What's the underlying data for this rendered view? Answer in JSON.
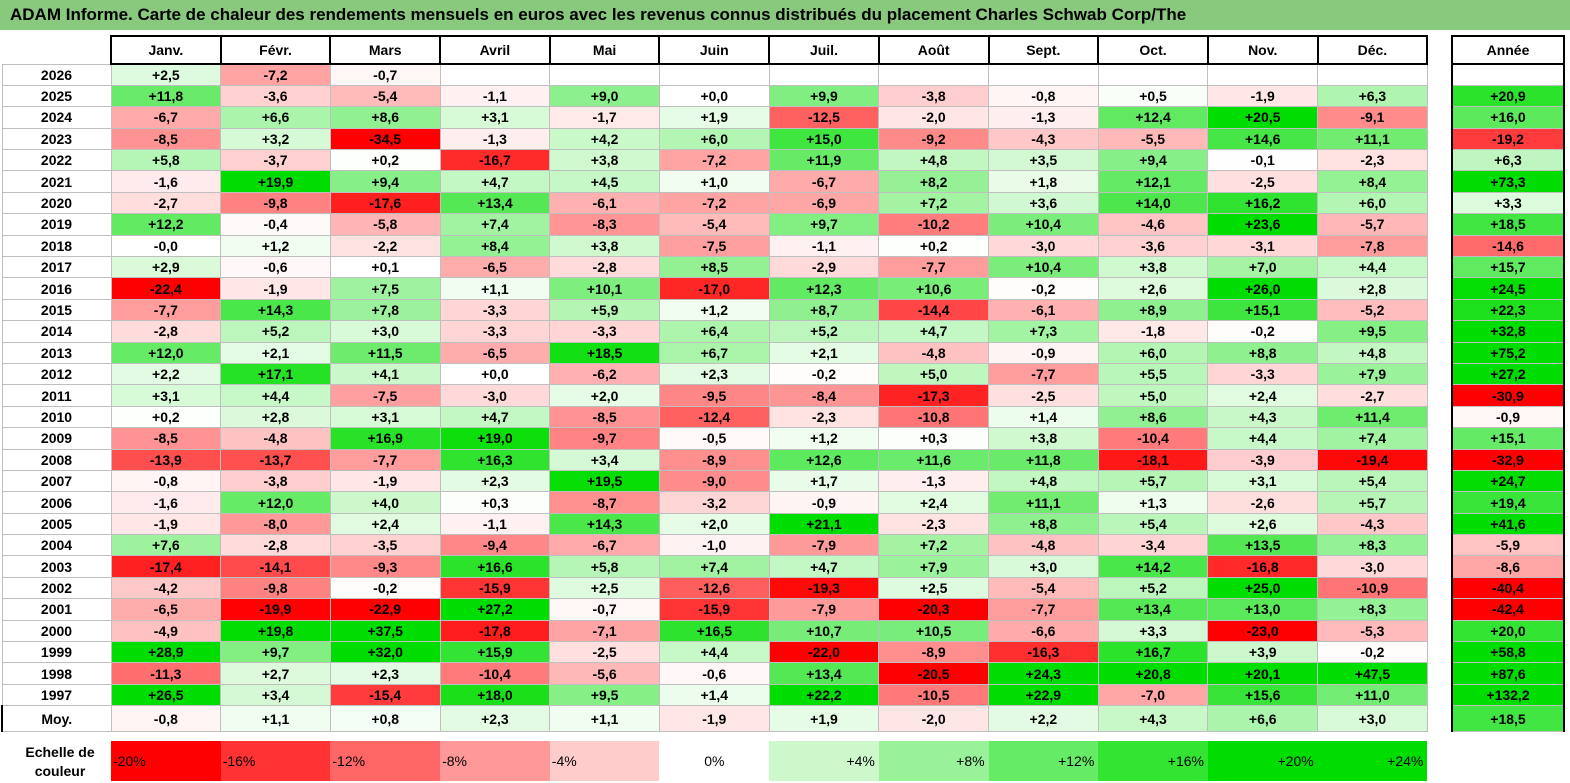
{
  "title": "ADAM Informe. Carte de chaleur des rendements mensuels en euros avec les revenus connus distribués du placement Charles Schwab Corp/The",
  "colors": {
    "title_bg": "#89c97d",
    "neg_max": "#ff0000",
    "pos_max": "#00dd00",
    "zero": "#ffffff"
  },
  "chart_data": {
    "type": "heatmap",
    "title": "ADAM Informe. Carte de chaleur des rendements mensuels en euros avec les revenus connus distribués du placement Charles Schwab Corp/The",
    "months": [
      "Janv.",
      "Févr.",
      "Mars",
      "Avril",
      "Mai",
      "Juin",
      "Juil.",
      "Août",
      "Sept.",
      "Oct.",
      "Nov.",
      "Déc."
    ],
    "year_header": "Année",
    "rows": [
      {
        "year": "2026",
        "values": [
          "+2,5",
          "-7,2",
          "-0,7",
          "",
          "",
          "",
          "",
          "",
          "",
          "",
          "",
          ""
        ],
        "annual": ""
      },
      {
        "year": "2025",
        "values": [
          "+11,8",
          "-3,6",
          "-5,4",
          "-1,1",
          "+9,0",
          "+0,0",
          "+9,9",
          "-3,8",
          "-0,8",
          "+0,5",
          "-1,9",
          "+6,3"
        ],
        "annual": "+20,9"
      },
      {
        "year": "2024",
        "values": [
          "-6,7",
          "+6,6",
          "+8,6",
          "+3,1",
          "-1,7",
          "+1,9",
          "-12,5",
          "-2,0",
          "-1,3",
          "+12,4",
          "+20,5",
          "-9,1"
        ],
        "annual": "+16,0"
      },
      {
        "year": "2023",
        "values": [
          "-8,5",
          "+3,2",
          "-34,5",
          "-1,3",
          "+4,2",
          "+6,0",
          "+15,0",
          "-9,2",
          "-4,3",
          "-5,5",
          "+14,6",
          "+11,1"
        ],
        "annual": "-19,2"
      },
      {
        "year": "2022",
        "values": [
          "+5,8",
          "-3,7",
          "+0,2",
          "-16,7",
          "+3,8",
          "-7,2",
          "+11,9",
          "+4,8",
          "+3,5",
          "+9,4",
          "-0,1",
          "-2,3"
        ],
        "annual": "+6,3"
      },
      {
        "year": "2021",
        "values": [
          "-1,6",
          "+19,9",
          "+9,4",
          "+4,7",
          "+4,5",
          "+1,0",
          "-6,7",
          "+8,2",
          "+1,8",
          "+12,1",
          "-2,5",
          "+8,4"
        ],
        "annual": "+73,3"
      },
      {
        "year": "2020",
        "values": [
          "-2,7",
          "-9,8",
          "-17,6",
          "+13,4",
          "-6,1",
          "-7,2",
          "-6,9",
          "+7,2",
          "+3,6",
          "+14,0",
          "+16,2",
          "+6,0"
        ],
        "annual": "+3,3"
      },
      {
        "year": "2019",
        "values": [
          "+12,2",
          "-0,4",
          "-5,8",
          "+7,4",
          "-8,3",
          "-5,4",
          "+9,7",
          "-10,2",
          "+10,4",
          "-4,6",
          "+23,6",
          "-5,7"
        ],
        "annual": "+18,5"
      },
      {
        "year": "2018",
        "values": [
          "-0,0",
          "+1,2",
          "-2,2",
          "+8,4",
          "+3,8",
          "-7,5",
          "-1,1",
          "+0,2",
          "-3,0",
          "-3,6",
          "-3,1",
          "-7,8"
        ],
        "annual": "-14,6"
      },
      {
        "year": "2017",
        "values": [
          "+2,9",
          "-0,6",
          "+0,1",
          "-6,5",
          "-2,8",
          "+8,5",
          "-2,9",
          "-7,7",
          "+10,4",
          "+3,8",
          "+7,0",
          "+4,4"
        ],
        "annual": "+15,7"
      },
      {
        "year": "2016",
        "values": [
          "-22,4",
          "-1,9",
          "+7,5",
          "+1,1",
          "+10,1",
          "-17,0",
          "+12,3",
          "+10,6",
          "-0,2",
          "+2,6",
          "+26,0",
          "+2,8"
        ],
        "annual": "+24,5"
      },
      {
        "year": "2015",
        "values": [
          "-7,7",
          "+14,3",
          "+7,8",
          "-3,3",
          "+5,9",
          "+1,2",
          "+8,7",
          "-14,4",
          "-6,1",
          "+8,9",
          "+15,1",
          "-5,2"
        ],
        "annual": "+22,3"
      },
      {
        "year": "2014",
        "values": [
          "-2,8",
          "+5,2",
          "+3,0",
          "-3,3",
          "-3,3",
          "+6,4",
          "+5,2",
          "+4,7",
          "+7,3",
          "-1,8",
          "-0,2",
          "+9,5"
        ],
        "annual": "+32,8"
      },
      {
        "year": "2013",
        "values": [
          "+12,0",
          "+2,1",
          "+11,5",
          "-6,5",
          "+18,5",
          "+6,7",
          "+2,1",
          "-4,8",
          "-0,9",
          "+6,0",
          "+8,8",
          "+4,8"
        ],
        "annual": "+75,2"
      },
      {
        "year": "2012",
        "values": [
          "+2,2",
          "+17,1",
          "+4,1",
          "+0,0",
          "-6,2",
          "+2,3",
          "-0,2",
          "+5,0",
          "-7,7",
          "+5,5",
          "-3,3",
          "+7,9"
        ],
        "annual": "+27,2"
      },
      {
        "year": "2011",
        "values": [
          "+3,1",
          "+4,4",
          "-7,5",
          "-3,0",
          "+2,0",
          "-9,5",
          "-8,4",
          "-17,3",
          "-2,5",
          "+5,0",
          "+2,4",
          "-2,7"
        ],
        "annual": "-30,9"
      },
      {
        "year": "2010",
        "values": [
          "+0,2",
          "+2,8",
          "+3,1",
          "+4,7",
          "-8,5",
          "-12,4",
          "-2,3",
          "-10,8",
          "+1,4",
          "+8,6",
          "+4,3",
          "+11,4"
        ],
        "annual": "-0,9"
      },
      {
        "year": "2009",
        "values": [
          "-8,5",
          "-4,8",
          "+16,9",
          "+19,0",
          "-9,7",
          "-0,5",
          "+1,2",
          "+0,3",
          "+3,8",
          "-10,4",
          "+4,4",
          "+7,4"
        ],
        "annual": "+15,1"
      },
      {
        "year": "2008",
        "values": [
          "-13,9",
          "-13,7",
          "-7,7",
          "+16,3",
          "+3,4",
          "-8,9",
          "+12,6",
          "+11,6",
          "+11,8",
          "-18,1",
          "-3,9",
          "-19,4"
        ],
        "annual": "-32,9"
      },
      {
        "year": "2007",
        "values": [
          "-0,8",
          "-3,8",
          "-1,9",
          "+2,3",
          "+19,5",
          "-9,0",
          "+1,7",
          "-1,3",
          "+4,8",
          "+5,7",
          "+3,1",
          "+5,4"
        ],
        "annual": "+24,7"
      },
      {
        "year": "2006",
        "values": [
          "-1,6",
          "+12,0",
          "+4,0",
          "+0,3",
          "-8,7",
          "-3,2",
          "-0,9",
          "+2,4",
          "+11,1",
          "+1,3",
          "-2,6",
          "+5,7"
        ],
        "annual": "+19,4"
      },
      {
        "year": "2005",
        "values": [
          "-1,9",
          "-8,0",
          "+2,4",
          "-1,1",
          "+14,3",
          "+2,0",
          "+21,1",
          "-2,3",
          "+8,8",
          "+5,4",
          "+2,6",
          "-4,3"
        ],
        "annual": "+41,6"
      },
      {
        "year": "2004",
        "values": [
          "+7,6",
          "-2,8",
          "-3,5",
          "-9,4",
          "-6,7",
          "-1,0",
          "-7,9",
          "+7,2",
          "-4,8",
          "-3,4",
          "+13,5",
          "+8,3"
        ],
        "annual": "-5,9"
      },
      {
        "year": "2003",
        "values": [
          "-17,4",
          "-14,1",
          "-9,3",
          "+16,6",
          "+5,8",
          "+7,4",
          "+4,7",
          "+7,9",
          "+3,0",
          "+14,2",
          "-16,8",
          "-3,0"
        ],
        "annual": "-8,6"
      },
      {
        "year": "2002",
        "values": [
          "-4,2",
          "-9,8",
          "-0,2",
          "-15,9",
          "+2,5",
          "-12,6",
          "-19,3",
          "+2,5",
          "-5,4",
          "+5,2",
          "+25,0",
          "-10,9"
        ],
        "annual": "-40,4"
      },
      {
        "year": "2001",
        "values": [
          "-6,5",
          "-19,9",
          "-22,9",
          "+27,2",
          "-0,7",
          "-15,9",
          "-7,9",
          "-20,3",
          "-7,7",
          "+13,4",
          "+13,0",
          "+8,3"
        ],
        "annual": "-42,4"
      },
      {
        "year": "2000",
        "values": [
          "-4,9",
          "+19,8",
          "+37,5",
          "-17,8",
          "-7,1",
          "+16,5",
          "+10,7",
          "+10,5",
          "-6,6",
          "+3,3",
          "-23,0",
          "-5,3"
        ],
        "annual": "+20,0"
      },
      {
        "year": "1999",
        "values": [
          "+28,9",
          "+9,7",
          "+32,0",
          "+15,9",
          "-2,5",
          "+4,4",
          "-22,0",
          "-8,9",
          "-16,3",
          "+16,7",
          "+3,9",
          "-0,2"
        ],
        "annual": "+58,8"
      },
      {
        "year": "1998",
        "values": [
          "-11,3",
          "+2,7",
          "+2,3",
          "-10,4",
          "-5,6",
          "-0,6",
          "+13,4",
          "-20,5",
          "+24,3",
          "+20,8",
          "+20,1",
          "+47,5"
        ],
        "annual": "+87,6"
      },
      {
        "year": "1997",
        "values": [
          "+26,5",
          "+3,4",
          "-15,4",
          "+18,0",
          "+9,5",
          "+1,4",
          "+22,2",
          "-10,5",
          "+22,9",
          "-7,0",
          "+15,6",
          "+11,0"
        ],
        "annual": "+132,2"
      }
    ],
    "average": {
      "label": "Moy.",
      "values": [
        "-0,8",
        "+1,1",
        "+0,8",
        "+2,3",
        "+1,1",
        "-1,9",
        "+1,9",
        "-2,0",
        "+2,2",
        "+4,3",
        "+6,6",
        "+3,0"
      ],
      "annual": "+18,5"
    },
    "scale": {
      "label": "Echelle de couleur",
      "steps": [
        "-20%",
        "-16%",
        "-12%",
        "-8%",
        "-4%",
        "0%",
        "+4%",
        "+8%",
        "+12%",
        "+16%",
        "+20%",
        "+24%"
      ]
    }
  }
}
